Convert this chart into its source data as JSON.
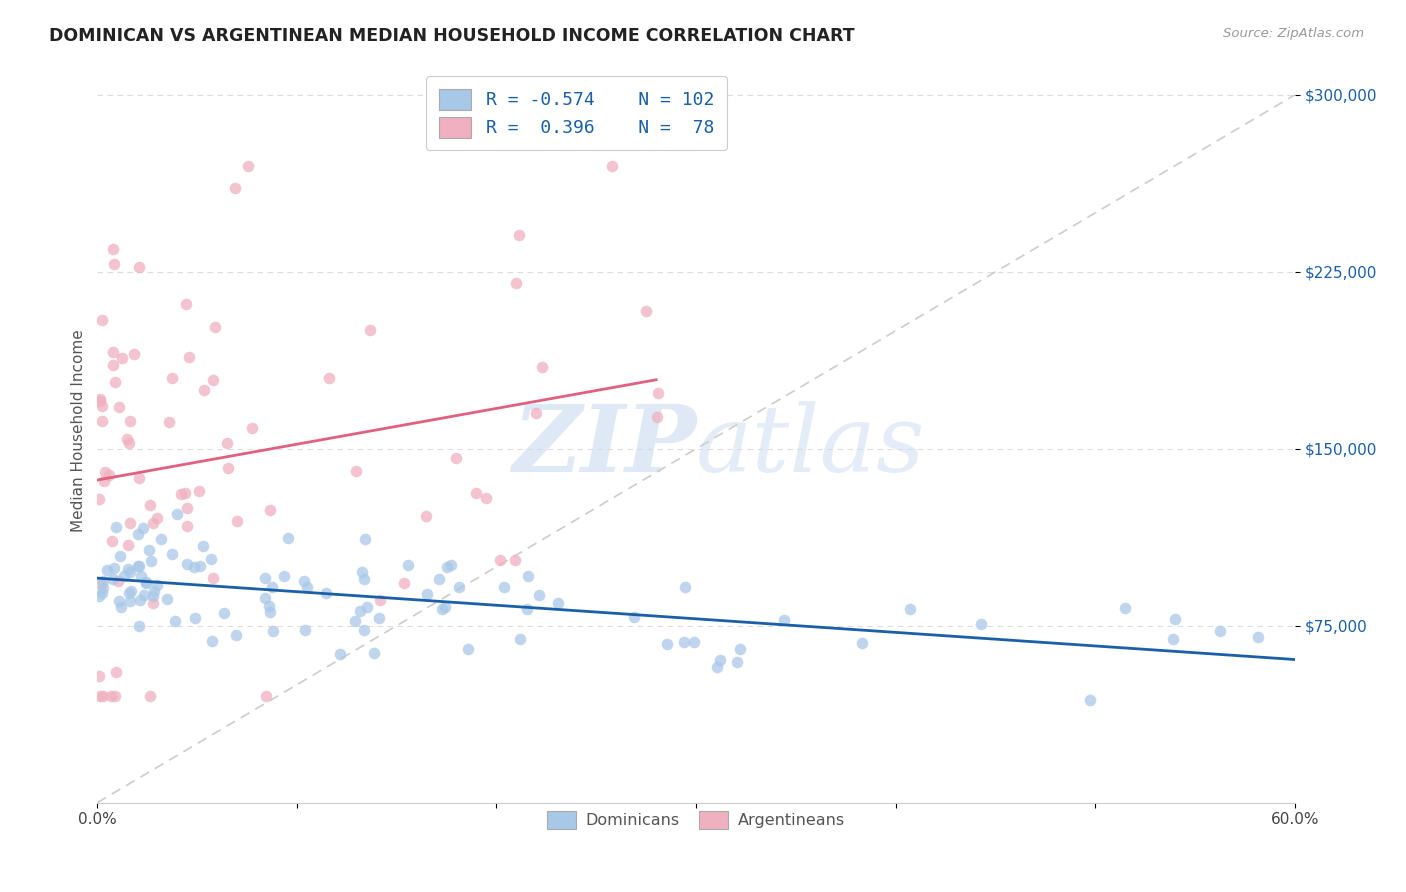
{
  "title": "DOMINICAN VS ARGENTINEAN MEDIAN HOUSEHOLD INCOME CORRELATION CHART",
  "source": "Source: ZipAtlas.com",
  "ylabel": "Median Household Income",
  "ytick_labels": [
    "$75,000",
    "$150,000",
    "$225,000",
    "$300,000"
  ],
  "ytick_values": [
    75000,
    150000,
    225000,
    300000
  ],
  "watermark_zip": "ZIP",
  "watermark_atlas": "atlas",
  "blue_scatter_color": "#a8c8e8",
  "pink_scatter_color": "#f0b0c0",
  "blue_line_color": "#1a5fa8",
  "pink_line_color": "#e06080",
  "diag_line_color": "#cccccc",
  "grid_color": "#dddddd",
  "background": "#ffffff",
  "legend1_r": "-0.574",
  "legend1_n": "102",
  "legend2_r": "0.396",
  "legend2_n": "78"
}
